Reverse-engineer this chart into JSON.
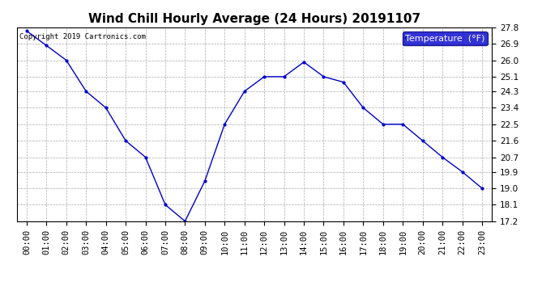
{
  "title": "Wind Chill Hourly Average (24 Hours) 20191107",
  "copyright": "Copyright 2019 Cartronics.com",
  "legend_label": "Temperature  (°F)",
  "hours": [
    "00:00",
    "01:00",
    "02:00",
    "03:00",
    "04:00",
    "05:00",
    "06:00",
    "07:00",
    "08:00",
    "09:00",
    "10:00",
    "11:00",
    "12:00",
    "13:00",
    "14:00",
    "15:00",
    "16:00",
    "17:00",
    "18:00",
    "19:00",
    "20:00",
    "21:00",
    "22:00",
    "23:00"
  ],
  "values": [
    27.6,
    26.8,
    26.0,
    24.3,
    23.4,
    21.6,
    20.7,
    18.1,
    17.2,
    19.4,
    22.5,
    24.3,
    25.1,
    25.1,
    25.9,
    25.1,
    24.8,
    23.4,
    22.5,
    22.5,
    21.6,
    20.7,
    19.9,
    19.0
  ],
  "ylim_min": 17.2,
  "ylim_max": 27.8,
  "yticks": [
    17.2,
    18.1,
    19.0,
    19.9,
    20.7,
    21.6,
    22.5,
    23.4,
    24.3,
    25.1,
    26.0,
    26.9,
    27.8
  ],
  "line_color": "#0000cc",
  "marker": ".",
  "marker_size": 4,
  "bg_color": "#ffffff",
  "plot_bg_color": "#ffffff",
  "grid_color": "#aaaaaa",
  "title_fontsize": 11,
  "tick_fontsize": 7.5,
  "copyright_fontsize": 6.5,
  "legend_fontsize": 8,
  "legend_bg": "#0000cc",
  "legend_fg": "#ffffff"
}
